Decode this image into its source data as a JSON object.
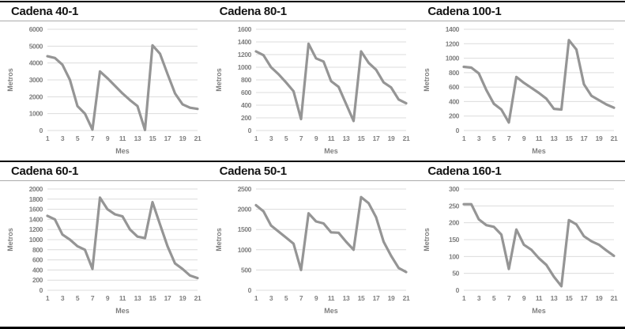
{
  "page": {
    "background": "#ffffff",
    "rule_thick_color": "#000000",
    "rule_thin_color": "#ababab",
    "title_color": "#141414"
  },
  "chart_data": [
    {
      "type": "line",
      "title": "Cadena 40-1",
      "xlabel": "Mes",
      "ylabel": "Metros",
      "x": [
        1,
        2,
        3,
        4,
        5,
        6,
        7,
        8,
        9,
        10,
        11,
        12,
        13,
        14,
        15,
        16,
        17,
        18,
        19,
        20,
        21
      ],
      "values": [
        4400,
        4300,
        3900,
        3000,
        1450,
        1000,
        50,
        3500,
        3100,
        2650,
        2200,
        1800,
        1450,
        30,
        5050,
        4550,
        3350,
        2200,
        1550,
        1350,
        1280
      ],
      "ylim": [
        0,
        6000
      ],
      "ystep": 1000,
      "xticks": [
        1,
        3,
        5,
        7,
        9,
        11,
        13,
        15,
        17,
        19,
        21
      ],
      "grid": true,
      "legend": "none",
      "line_color": "#959595",
      "grid_color": "#dcdcdc",
      "tick_color": "#7f7f7f"
    },
    {
      "type": "line",
      "title": "Cadena 80-1",
      "xlabel": "Mes",
      "ylabel": "Metros",
      "x": [
        1,
        2,
        3,
        4,
        5,
        6,
        7,
        8,
        9,
        10,
        11,
        12,
        13,
        14,
        15,
        16,
        17,
        18,
        19,
        20,
        21
      ],
      "values": [
        1250,
        1190,
        1000,
        890,
        760,
        620,
        180,
        1370,
        1140,
        1090,
        780,
        690,
        420,
        150,
        1250,
        1070,
        960,
        760,
        680,
        490,
        430
      ],
      "ylim": [
        0,
        1600
      ],
      "ystep": 200,
      "xticks": [
        1,
        3,
        5,
        7,
        9,
        11,
        13,
        15,
        17,
        19,
        21
      ],
      "grid": true,
      "legend": "none",
      "line_color": "#959595",
      "grid_color": "#dcdcdc",
      "tick_color": "#7f7f7f"
    },
    {
      "type": "line",
      "title": "Cadena 100-1",
      "xlabel": "Mes",
      "ylabel": "Metros",
      "x": [
        1,
        2,
        3,
        4,
        5,
        6,
        7,
        8,
        9,
        10,
        11,
        12,
        13,
        14,
        15,
        16,
        17,
        18,
        19,
        20,
        21
      ],
      "values": [
        880,
        870,
        790,
        560,
        370,
        290,
        110,
        740,
        660,
        590,
        520,
        440,
        300,
        290,
        1250,
        1120,
        640,
        480,
        420,
        360,
        315
      ],
      "ylim": [
        0,
        1400
      ],
      "ystep": 200,
      "xticks": [
        1,
        3,
        5,
        7,
        9,
        11,
        13,
        15,
        17,
        19,
        21
      ],
      "grid": true,
      "legend": "none",
      "line_color": "#959595",
      "grid_color": "#dcdcdc",
      "tick_color": "#7f7f7f"
    },
    {
      "type": "line",
      "title": "Cadena 60-1",
      "xlabel": "Mes",
      "ylabel": "Metros",
      "x": [
        1,
        2,
        3,
        4,
        5,
        6,
        7,
        8,
        9,
        10,
        11,
        12,
        13,
        14,
        15,
        16,
        17,
        18,
        19,
        20,
        21
      ],
      "values": [
        1470,
        1400,
        1100,
        1000,
        870,
        800,
        420,
        1830,
        1600,
        1500,
        1460,
        1200,
        1060,
        1030,
        1740,
        1300,
        870,
        530,
        420,
        290,
        240
      ],
      "ylim": [
        0,
        2000
      ],
      "ystep": 200,
      "xticks": [
        1,
        3,
        5,
        7,
        9,
        11,
        13,
        15,
        17,
        19,
        21
      ],
      "grid": true,
      "legend": "none",
      "line_color": "#959595",
      "grid_color": "#dcdcdc",
      "tick_color": "#7f7f7f"
    },
    {
      "type": "line",
      "title": "Cadena 50-1",
      "xlabel": "Mes",
      "ylabel": "Metros",
      "x": [
        1,
        2,
        3,
        4,
        5,
        6,
        7,
        8,
        9,
        10,
        11,
        12,
        13,
        14,
        15,
        16,
        17,
        18,
        19,
        20,
        21
      ],
      "values": [
        2100,
        1950,
        1600,
        1450,
        1300,
        1150,
        500,
        1900,
        1700,
        1650,
        1430,
        1420,
        1200,
        1000,
        2300,
        2150,
        1800,
        1200,
        850,
        550,
        450
      ],
      "ylim": [
        0,
        2500
      ],
      "ystep": 500,
      "xticks": [
        1,
        3,
        5,
        7,
        9,
        11,
        13,
        15,
        17,
        19,
        21
      ],
      "grid": true,
      "legend": "none",
      "line_color": "#959595",
      "grid_color": "#dcdcdc",
      "tick_color": "#7f7f7f"
    },
    {
      "type": "line",
      "title": "Cadena 160-1",
      "xlabel": "Mes",
      "ylabel": "Metros",
      "x": [
        1,
        2,
        3,
        4,
        5,
        6,
        7,
        8,
        9,
        10,
        11,
        12,
        13,
        14,
        15,
        16,
        17,
        18,
        19,
        20,
        21
      ],
      "values": [
        255,
        255,
        210,
        193,
        188,
        165,
        63,
        180,
        135,
        120,
        95,
        75,
        40,
        12,
        208,
        195,
        160,
        145,
        135,
        118,
        102
      ],
      "ylim": [
        0,
        300
      ],
      "ystep": 50,
      "xticks": [
        1,
        3,
        5,
        7,
        9,
        11,
        13,
        15,
        17,
        19,
        21
      ],
      "grid": true,
      "legend": "none",
      "line_color": "#959595",
      "grid_color": "#dcdcdc",
      "tick_color": "#7f7f7f"
    }
  ]
}
